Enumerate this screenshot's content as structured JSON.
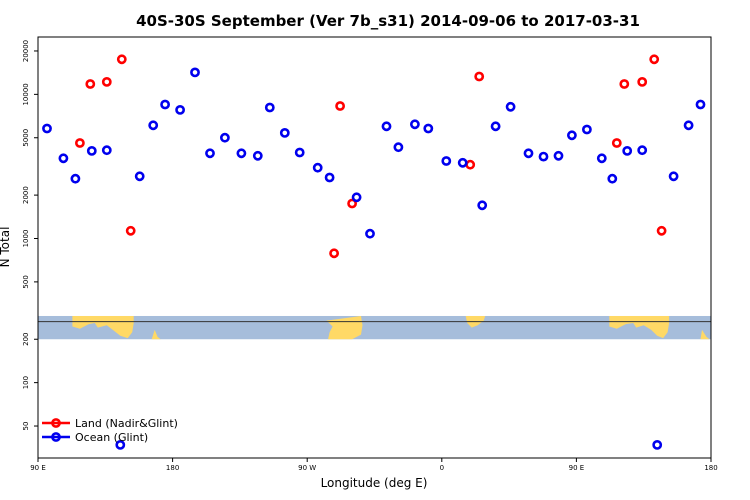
{
  "chart_data": {
    "type": "scatter",
    "title": "40S-30S September (Ver 7b_s31)   2014-09-06 to 2017-03-31",
    "xlabel": "Longitude (deg E)",
    "ylabel": "N Total",
    "xlim": [
      90,
      540
    ],
    "ylim": [
      30,
      25000
    ],
    "yscale": "log",
    "grid": false,
    "legend_position": "bottom-left",
    "x_ticks": [
      {
        "value": 90,
        "label": "90 E"
      },
      {
        "value": 180,
        "label": "180"
      },
      {
        "value": 270,
        "label": "90 W"
      },
      {
        "value": 360,
        "label": "0"
      },
      {
        "value": 450,
        "label": "90 E"
      },
      {
        "value": 540,
        "label": "180"
      }
    ],
    "y_ticks": [
      {
        "value": 50,
        "label": "50"
      },
      {
        "value": 100,
        "label": "100"
      },
      {
        "value": 200,
        "label": "200"
      },
      {
        "value": 500,
        "label": "500"
      },
      {
        "value": 1000,
        "label": "1000"
      },
      {
        "value": 2000,
        "label": "2000"
      },
      {
        "value": 5000,
        "label": "5000"
      },
      {
        "value": 10000,
        "label": "10000"
      },
      {
        "value": 20000,
        "label": "20000"
      }
    ],
    "series": [
      {
        "name": "Land (Nadir&Glint)",
        "color": "#ff0000",
        "points": [
          {
            "x": 118,
            "y": 4600
          },
          {
            "x": 125,
            "y": 11800
          },
          {
            "x": 136,
            "y": 12200
          },
          {
            "x": 146,
            "y": 17500
          },
          {
            "x": 152,
            "y": 1130
          },
          {
            "x": 288,
            "y": 790
          },
          {
            "x": 292,
            "y": 8300
          },
          {
            "x": 300,
            "y": 1750
          },
          {
            "x": 379,
            "y": 3250
          },
          {
            "x": 385,
            "y": 13300
          },
          {
            "x": 477,
            "y": 4600
          },
          {
            "x": 482,
            "y": 11800
          },
          {
            "x": 494,
            "y": 12200
          },
          {
            "x": 502,
            "y": 17500
          },
          {
            "x": 507,
            "y": 1130
          }
        ]
      },
      {
        "name": "Ocean (Glint)",
        "color": "#0000ee",
        "points": [
          {
            "x": 96,
            "y": 5800
          },
          {
            "x": 107,
            "y": 3600
          },
          {
            "x": 115,
            "y": 2600
          },
          {
            "x": 126,
            "y": 4050
          },
          {
            "x": 136,
            "y": 4100
          },
          {
            "x": 145,
            "y": 37
          },
          {
            "x": 158,
            "y": 2700
          },
          {
            "x": 167,
            "y": 6100
          },
          {
            "x": 175,
            "y": 8500
          },
          {
            "x": 185,
            "y": 7800
          },
          {
            "x": 195,
            "y": 14200
          },
          {
            "x": 205,
            "y": 3900
          },
          {
            "x": 215,
            "y": 5000
          },
          {
            "x": 226,
            "y": 3900
          },
          {
            "x": 237,
            "y": 3750
          },
          {
            "x": 245,
            "y": 8100
          },
          {
            "x": 255,
            "y": 5400
          },
          {
            "x": 265,
            "y": 3950
          },
          {
            "x": 277,
            "y": 3100
          },
          {
            "x": 285,
            "y": 2650
          },
          {
            "x": 303,
            "y": 1930
          },
          {
            "x": 312,
            "y": 1080
          },
          {
            "x": 323,
            "y": 6000
          },
          {
            "x": 331,
            "y": 4300
          },
          {
            "x": 342,
            "y": 6200
          },
          {
            "x": 351,
            "y": 5800
          },
          {
            "x": 363,
            "y": 3450
          },
          {
            "x": 374,
            "y": 3350
          },
          {
            "x": 387,
            "y": 1700
          },
          {
            "x": 396,
            "y": 6000
          },
          {
            "x": 406,
            "y": 8200
          },
          {
            "x": 418,
            "y": 3900
          },
          {
            "x": 428,
            "y": 3700
          },
          {
            "x": 438,
            "y": 3750
          },
          {
            "x": 447,
            "y": 5200
          },
          {
            "x": 457,
            "y": 5700
          },
          {
            "x": 467,
            "y": 3600
          },
          {
            "x": 474,
            "y": 2600
          },
          {
            "x": 484,
            "y": 4050
          },
          {
            "x": 494,
            "y": 4100
          },
          {
            "x": 504,
            "y": 37
          },
          {
            "x": 515,
            "y": 2700
          },
          {
            "x": 525,
            "y": 6100
          },
          {
            "x": 533,
            "y": 8500
          }
        ]
      }
    ],
    "background_map": {
      "land_color": "#ffd966",
      "ocean_color": "#a6bddb",
      "band_ylim": [
        200,
        290
      ],
      "center_line_value": 265
    }
  }
}
